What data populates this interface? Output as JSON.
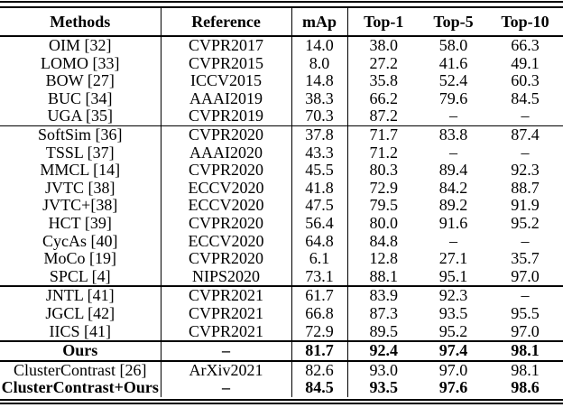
{
  "colors": {
    "text": "#000000",
    "background": "#ffffff",
    "rule": "#000000"
  },
  "table": {
    "columns": [
      "Methods",
      "Reference",
      "mAp",
      "Top-1",
      "Top-5",
      "Top-10"
    ],
    "rows": [
      {
        "cells": [
          "OIM [32]",
          "CVPR2017",
          "14.0",
          "38.0",
          "58.0",
          "66.3"
        ],
        "bold": false,
        "rule_after": "none"
      },
      {
        "cells": [
          "LOMO [33]",
          "CVPR2015",
          "8.0",
          "27.2",
          "41.6",
          "49.1"
        ],
        "bold": false,
        "rule_after": "none"
      },
      {
        "cells": [
          "BOW [27]",
          "ICCV2015",
          "14.8",
          "35.8",
          "52.4",
          "60.3"
        ],
        "bold": false,
        "rule_after": "none"
      },
      {
        "cells": [
          "BUC [34]",
          "AAAI2019",
          "38.3",
          "66.2",
          "79.6",
          "84.5"
        ],
        "bold": false,
        "rule_after": "none"
      },
      {
        "cells": [
          "UGA [35]",
          "CVPR2019",
          "70.3",
          "87.2",
          "–",
          "–"
        ],
        "bold": false,
        "rule_after": "thin"
      },
      {
        "cells": [
          "SoftSim [36]",
          "CVPR2020",
          "37.8",
          "71.7",
          "83.8",
          "87.4"
        ],
        "bold": false,
        "rule_after": "none"
      },
      {
        "cells": [
          "TSSL [37]",
          "AAAI2020",
          "43.3",
          "71.2",
          "–",
          "–"
        ],
        "bold": false,
        "rule_after": "none"
      },
      {
        "cells": [
          "MMCL [14]",
          "CVPR2020",
          "45.5",
          "80.3",
          "89.4",
          "92.3"
        ],
        "bold": false,
        "rule_after": "none"
      },
      {
        "cells": [
          "JVTC [38]",
          "ECCV2020",
          "41.8",
          "72.9",
          "84.2",
          "88.7"
        ],
        "bold": false,
        "rule_after": "none"
      },
      {
        "cells": [
          "JVTC+[38]",
          "ECCV2020",
          "47.5",
          "79.5",
          "89.2",
          "91.9"
        ],
        "bold": false,
        "rule_after": "none"
      },
      {
        "cells": [
          "HCT [39]",
          "CVPR2020",
          "56.4",
          "80.0",
          "91.6",
          "95.2"
        ],
        "bold": false,
        "rule_after": "none"
      },
      {
        "cells": [
          "CycAs [40]",
          "ECCV2020",
          "64.8",
          "84.8",
          "–",
          "–"
        ],
        "bold": false,
        "rule_after": "none"
      },
      {
        "cells": [
          "MoCo [19]",
          "CVPR2020",
          "6.1",
          "12.8",
          "27.1",
          "35.7"
        ],
        "bold": false,
        "rule_after": "none"
      },
      {
        "cells": [
          "SPCL [4]",
          "NIPS2020",
          "73.1",
          "88.1",
          "95.1",
          "97.0"
        ],
        "bold": false,
        "rule_after": "thick"
      },
      {
        "cells": [
          "JNTL [41]",
          "CVPR2021",
          "61.7",
          "83.9",
          "92.3",
          "–"
        ],
        "bold": false,
        "rule_after": "none"
      },
      {
        "cells": [
          "JGCL [42]",
          "CVPR2021",
          "66.8",
          "87.3",
          "93.5",
          "95.5"
        ],
        "bold": false,
        "rule_after": "none"
      },
      {
        "cells": [
          "IICS [41]",
          "CVPR2021",
          "72.9",
          "89.5",
          "95.2",
          "97.0"
        ],
        "bold": false,
        "rule_after": "thick"
      },
      {
        "cells": [
          "Ours",
          "–",
          "81.7",
          "92.4",
          "97.4",
          "98.1"
        ],
        "bold": true,
        "rule_after": "thick"
      },
      {
        "cells": [
          "ClusterContrast [26]",
          "ArXiv2021",
          "82.6",
          "93.0",
          "97.0",
          "98.1"
        ],
        "bold": false,
        "rule_after": "none"
      },
      {
        "cells": [
          "ClusterContrast+Ours",
          "–",
          "84.5",
          "93.5",
          "97.6",
          "98.6"
        ],
        "bold": true,
        "rule_after": "none"
      }
    ]
  }
}
